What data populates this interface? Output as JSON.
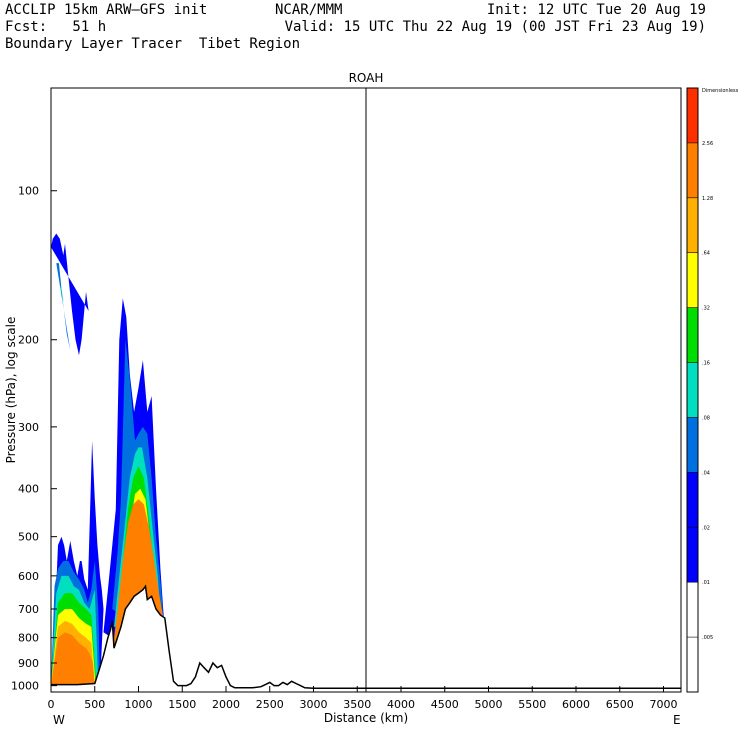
{
  "header": {
    "model": "ACCLIP 15km ARW–GFS init",
    "org": "NCAR/MMM",
    "init": "Init: 12 UTC Tue 20 Aug 19",
    "fcst": "Fcst:   51 h",
    "valid": "Valid: 15 UTC Thu 22 Aug 19 (00 JST Fri 23 Aug 19)",
    "description": "Boundary Layer Tracer  Tibet Region"
  },
  "chart_data": {
    "type": "cross-section",
    "title": "ROAH",
    "xlabel": "Distance (km)",
    "ylabel": "Pressure (hPa), log scale",
    "xlim": [
      0,
      7200
    ],
    "ylim": [
      1030,
      62
    ],
    "x_ticks": [
      0,
      500,
      1000,
      1500,
      2000,
      2500,
      3000,
      3500,
      4000,
      4500,
      5000,
      5500,
      6000,
      6500,
      7000
    ],
    "y_ticks": [
      100,
      200,
      300,
      400,
      500,
      600,
      700,
      800,
      900,
      1000
    ],
    "x_left_label": "W",
    "x_right_label": "E",
    "marker_line_km": 3600,
    "terrain": {
      "x": [
        0,
        300,
        500,
        550,
        600,
        650,
        680,
        700,
        720,
        750,
        800,
        850,
        900,
        950,
        1000,
        1050,
        1080,
        1100,
        1150,
        1200,
        1250,
        1300,
        1350,
        1400,
        1450,
        1500,
        1550,
        1600,
        1650,
        1700,
        1750,
        1800,
        1850,
        1900,
        1950,
        2000,
        2050,
        2100,
        2200,
        2300,
        2400,
        2450,
        2500,
        2550,
        2600,
        2650,
        2700,
        2750,
        2800,
        2850,
        2900,
        3000,
        3500,
        4000,
        4500,
        5000,
        5500,
        6000,
        6500,
        7000,
        7200
      ],
      "p": [
        995,
        995,
        990,
        930,
        870,
        800,
        770,
        740,
        840,
        810,
        760,
        700,
        680,
        660,
        650,
        640,
        630,
        670,
        660,
        700,
        720,
        730,
        850,
        980,
        1000,
        1000,
        1000,
        990,
        960,
        900,
        920,
        940,
        900,
        920,
        910,
        960,
        1000,
        1010,
        1010,
        1010,
        1005,
        995,
        985,
        1000,
        1000,
        985,
        995,
        980,
        990,
        1000,
        1010,
        1012,
        1012,
        1012,
        1012,
        1012,
        1012,
        1012,
        1012,
        1012,
        1012
      ]
    },
    "tracer_plumes": [
      {
        "level": 0,
        "color": "#0000ff",
        "x": [
          0,
          50,
          80,
          120,
          150,
          180,
          220,
          260,
          300,
          330,
          350,
          380,
          420,
          470,
          500,
          530,
          560,
          580,
          600,
          560
        ],
        "p": [
          1000,
          690,
          520,
          500,
          520,
          560,
          510,
          560,
          600,
          560,
          560,
          610,
          640,
          320,
          420,
          520,
          600,
          640,
          700,
          1000
        ]
      },
      {
        "level": 0,
        "color": "#0000ff",
        "x": [
          0,
          20,
          60,
          100,
          140,
          160,
          200,
          240,
          280,
          320,
          350,
          400,
          430
        ],
        "p": [
          130,
          125,
          122,
          125,
          135,
          128,
          150,
          175,
          200,
          215,
          200,
          160,
          175
        ]
      },
      {
        "level": 0,
        "color": "#0000ff",
        "x": [
          600,
          650,
          700,
          740,
          780,
          820,
          860,
          900,
          950,
          1000,
          1050,
          1100,
          1150,
          1200,
          1250,
          1300,
          1350
        ],
        "p": [
          780,
          640,
          520,
          440,
          200,
          165,
          180,
          235,
          280,
          250,
          220,
          280,
          260,
          400,
          580,
          780,
          960
        ]
      },
      {
        "level": 1,
        "color": "#0070e0",
        "x": [
          0,
          40,
          80,
          140,
          200,
          260,
          320,
          380,
          420,
          460,
          500,
          540,
          560
        ],
        "p": [
          1000,
          630,
          580,
          560,
          560,
          590,
          610,
          640,
          680,
          640,
          560,
          700,
          1000
        ]
      },
      {
        "level": 1,
        "color": "#0070e0",
        "x": [
          60,
          90,
          130,
          180,
          220
        ],
        "p": [
          140,
          140,
          165,
          195,
          210
        ]
      },
      {
        "level": 1,
        "color": "#0070e0",
        "x": [
          700,
          760,
          800,
          850,
          900,
          960,
          1000,
          1050,
          1100,
          1150,
          1200,
          1260,
          1300
        ],
        "p": [
          700,
          540,
          420,
          200,
          240,
          320,
          310,
          300,
          310,
          380,
          500,
          640,
          820
        ]
      },
      {
        "level": 2,
        "color": "#00e0c0",
        "x": [
          0,
          60,
          120,
          200,
          260,
          320,
          380,
          440,
          500,
          540
        ],
        "p": [
          1000,
          650,
          600,
          600,
          630,
          640,
          680,
          700,
          640,
          1000
        ]
      },
      {
        "level": 2,
        "color": "#00e0c0",
        "x": [
          100,
          120,
          150,
          180
        ],
        "p": [
          155,
          158,
          170,
          180
        ]
      },
      {
        "level": 2,
        "color": "#00e0c0",
        "x": [
          720,
          780,
          840,
          900,
          960,
          1000,
          1040,
          1100,
          1160,
          1220,
          1260
        ],
        "p": [
          760,
          600,
          480,
          380,
          340,
          330,
          330,
          380,
          480,
          600,
          760
        ]
      },
      {
        "level": 3,
        "color": "#00dd00",
        "x": [
          0,
          80,
          160,
          240,
          320,
          400,
          460,
          520
        ],
        "p": [
          1000,
          680,
          650,
          650,
          680,
          700,
          720,
          1000
        ]
      },
      {
        "level": 3,
        "color": "#00dd00",
        "x": [
          740,
          820,
          880,
          940,
          1000,
          1060,
          1120,
          1180,
          1240
        ],
        "p": [
          780,
          560,
          440,
          380,
          360,
          380,
          460,
          580,
          760
        ]
      },
      {
        "level": 4,
        "color": "#ffff00",
        "x": [
          0,
          80,
          160,
          240,
          320,
          400,
          460,
          510
        ],
        "p": [
          1000,
          720,
          700,
          700,
          730,
          750,
          760,
          1000
        ]
      },
      {
        "level": 4,
        "color": "#ffff00",
        "x": [
          760,
          840,
          900,
          960,
          1020,
          1080,
          1140,
          1200
        ],
        "p": [
          800,
          600,
          480,
          410,
          400,
          420,
          520,
          720
        ]
      },
      {
        "level": 5,
        "color": "#ffb000",
        "x": [
          0,
          80,
          160,
          240,
          320,
          400,
          460,
          500
        ],
        "p": [
          1000,
          760,
          740,
          750,
          780,
          800,
          820,
          1000
        ]
      },
      {
        "level": 6,
        "color": "#ff8000",
        "x": [
          0,
          80,
          160,
          240,
          320,
          400,
          440,
          480,
          500
        ],
        "p": [
          1000,
          800,
          780,
          790,
          820,
          840,
          860,
          900,
          1000
        ]
      },
      {
        "level": 6,
        "color": "#ff8000",
        "x": [
          700,
          760,
          820,
          880,
          940,
          1000,
          1060,
          1120,
          1180,
          1240,
          1300,
          1340
        ],
        "p": [
          860,
          700,
          560,
          470,
          430,
          420,
          430,
          480,
          560,
          660,
          760,
          900
        ]
      }
    ],
    "colorbar": {
      "labels": [
        "Dimensionless",
        "2.56",
        "1.28",
        ".64",
        ".32",
        ".16",
        ".08",
        ".04",
        ".02",
        ".01",
        ".005"
      ],
      "colors": [
        "#ff3000",
        "#ff8000",
        "#ffb000",
        "#ffff00",
        "#00dd00",
        "#00e0c0",
        "#0070e0",
        "#0000ff",
        "#0000ff",
        "#ffffff",
        "#ffffff"
      ]
    }
  }
}
